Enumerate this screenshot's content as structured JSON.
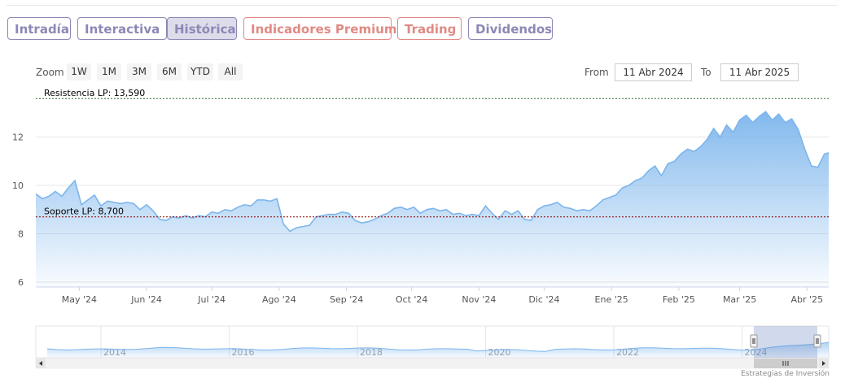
{
  "tabs": [
    {
      "label": "Intradía",
      "state": "normal"
    },
    {
      "label": "Interactiva",
      "state": "normal"
    },
    {
      "label": "Histórica",
      "state": "active"
    },
    {
      "label": "Indicadores Premium",
      "state": "highlight"
    },
    {
      "label": "Trading",
      "state": "highlight"
    },
    {
      "label": "Dividendos",
      "state": "normal"
    }
  ],
  "zoom": {
    "label": "Zoom",
    "buttons": [
      "1W",
      "1M",
      "3M",
      "6M",
      "YTD",
      "All"
    ]
  },
  "range": {
    "from_label": "From",
    "from_value": "11 Abr 2024",
    "to_label": "To",
    "to_value": "11 Abr 2025"
  },
  "credit": "Estrategias de Inversión",
  "colors": {
    "tab_text": "#8c88b5",
    "tab_highlight": "#e08a84",
    "series_line": "#7cb5ec",
    "support_line": "#8b0000",
    "resistance_line": "#2e6b2e"
  },
  "chart_data": {
    "type": "area",
    "x_start": "2024-04-11",
    "x_end": "2025-04-11",
    "ylim": [
      5.8,
      13.9
    ],
    "yticks": [
      6,
      8,
      10,
      12
    ],
    "grid": true,
    "xtick_labels": [
      {
        "date": "2024-05-01",
        "label": "May '24"
      },
      {
        "date": "2024-06-01",
        "label": "Jun '24"
      },
      {
        "date": "2024-07-01",
        "label": "Jul '24"
      },
      {
        "date": "2024-08-01",
        "label": "Ago '24"
      },
      {
        "date": "2024-09-01",
        "label": "Sep '24"
      },
      {
        "date": "2024-10-01",
        "label": "Oct '24"
      },
      {
        "date": "2024-11-01",
        "label": "Nov '24"
      },
      {
        "date": "2024-12-01",
        "label": "Dic '24"
      },
      {
        "date": "2025-01-01",
        "label": "Ene '25"
      },
      {
        "date": "2025-02-01",
        "label": "Feb '25"
      },
      {
        "date": "2025-03-01",
        "label": "Mar '25"
      },
      {
        "date": "2025-04-01",
        "label": "Abr '25"
      }
    ],
    "plot_lines": [
      {
        "name": "Resistencia LP",
        "value": 13.59,
        "label": "Resistencia LP: 13,590"
      },
      {
        "name": "Soporte LP",
        "value": 8.7,
        "label": "Soporte LP: 8,700"
      }
    ],
    "series": [
      {
        "x": [
          "2024-04-11",
          "2024-04-14",
          "2024-04-17",
          "2024-04-20",
          "2024-04-23",
          "2024-04-26",
          "2024-04-29",
          "2024-05-02",
          "2024-05-05",
          "2024-05-08",
          "2024-05-11",
          "2024-05-14",
          "2024-05-17",
          "2024-05-20",
          "2024-05-23",
          "2024-05-26",
          "2024-05-29",
          "2024-06-01",
          "2024-06-04",
          "2024-06-07",
          "2024-06-10",
          "2024-06-13",
          "2024-06-16",
          "2024-06-19",
          "2024-06-22",
          "2024-06-25",
          "2024-06-28",
          "2024-07-01",
          "2024-07-04",
          "2024-07-07",
          "2024-07-10",
          "2024-07-13",
          "2024-07-16",
          "2024-07-19",
          "2024-07-22",
          "2024-07-25",
          "2024-07-28",
          "2024-07-31",
          "2024-08-03",
          "2024-08-06",
          "2024-08-09",
          "2024-08-12",
          "2024-08-15",
          "2024-08-18",
          "2024-08-21",
          "2024-08-24",
          "2024-08-27",
          "2024-08-30",
          "2024-09-02",
          "2024-09-05",
          "2024-09-08",
          "2024-09-11",
          "2024-09-14",
          "2024-09-17",
          "2024-09-20",
          "2024-09-23",
          "2024-09-26",
          "2024-09-29",
          "2024-10-02",
          "2024-10-05",
          "2024-10-08",
          "2024-10-11",
          "2024-10-14",
          "2024-10-17",
          "2024-10-20",
          "2024-10-23",
          "2024-10-26",
          "2024-10-29",
          "2024-11-01",
          "2024-11-04",
          "2024-11-07",
          "2024-11-10",
          "2024-11-13",
          "2024-11-16",
          "2024-11-19",
          "2024-11-22",
          "2024-11-25",
          "2024-11-28",
          "2024-12-01",
          "2024-12-04",
          "2024-12-07",
          "2024-12-10",
          "2024-12-13",
          "2024-12-16",
          "2024-12-19",
          "2024-12-22",
          "2024-12-25",
          "2024-12-28",
          "2024-12-31",
          "2025-01-03",
          "2025-01-06",
          "2025-01-09",
          "2025-01-12",
          "2025-01-15",
          "2025-01-18",
          "2025-01-21",
          "2025-01-24",
          "2025-01-27",
          "2025-01-30",
          "2025-02-02",
          "2025-02-05",
          "2025-02-08",
          "2025-02-11",
          "2025-02-14",
          "2025-02-17",
          "2025-02-20",
          "2025-02-23",
          "2025-02-26",
          "2025-03-01",
          "2025-03-04",
          "2025-03-07",
          "2025-03-10",
          "2025-03-13",
          "2025-03-16",
          "2025-03-19",
          "2025-03-22",
          "2025-03-25",
          "2025-03-28",
          "2025-03-31",
          "2025-04-03",
          "2025-04-06",
          "2025-04-09",
          "2025-04-11"
        ],
        "values": [
          9.65,
          9.45,
          9.55,
          9.75,
          9.55,
          9.9,
          10.2,
          9.2,
          9.4,
          9.6,
          9.15,
          9.35,
          9.3,
          9.25,
          9.3,
          9.25,
          9.0,
          9.2,
          8.95,
          8.6,
          8.55,
          8.7,
          8.65,
          8.75,
          8.65,
          8.75,
          8.7,
          8.9,
          8.85,
          9.0,
          8.95,
          9.1,
          9.2,
          9.15,
          9.4,
          9.4,
          9.35,
          9.45,
          8.4,
          8.1,
          8.25,
          8.3,
          8.35,
          8.7,
          8.75,
          8.8,
          8.8,
          8.9,
          8.85,
          8.55,
          8.45,
          8.5,
          8.6,
          8.75,
          8.85,
          9.05,
          9.1,
          9.0,
          9.1,
          8.85,
          9.0,
          9.05,
          8.95,
          9.0,
          8.8,
          8.85,
          8.75,
          8.8,
          8.75,
          9.15,
          8.85,
          8.6,
          8.95,
          8.8,
          8.95,
          8.6,
          8.55,
          9.0,
          9.15,
          9.2,
          9.3,
          9.1,
          9.05,
          8.95,
          9.0,
          8.95,
          9.15,
          9.4,
          9.5,
          9.6,
          9.9,
          10.0,
          10.2,
          10.3,
          10.6,
          10.8,
          10.4,
          10.9,
          11.0,
          11.3,
          11.5,
          11.4,
          11.6,
          11.9,
          12.35,
          12.0,
          12.5,
          12.2,
          12.7,
          12.9,
          12.6,
          12.85,
          13.05,
          12.7,
          12.95,
          12.6,
          12.75,
          12.3,
          11.5,
          10.8,
          10.75,
          11.3,
          11.35
        ]
      }
    ],
    "navigator": {
      "xtick_labels": [
        "2014",
        "2016",
        "2018",
        "2020",
        "2022",
        "2024"
      ],
      "selected_range": [
        "2024-04-11",
        "2025-04-11"
      ]
    }
  }
}
